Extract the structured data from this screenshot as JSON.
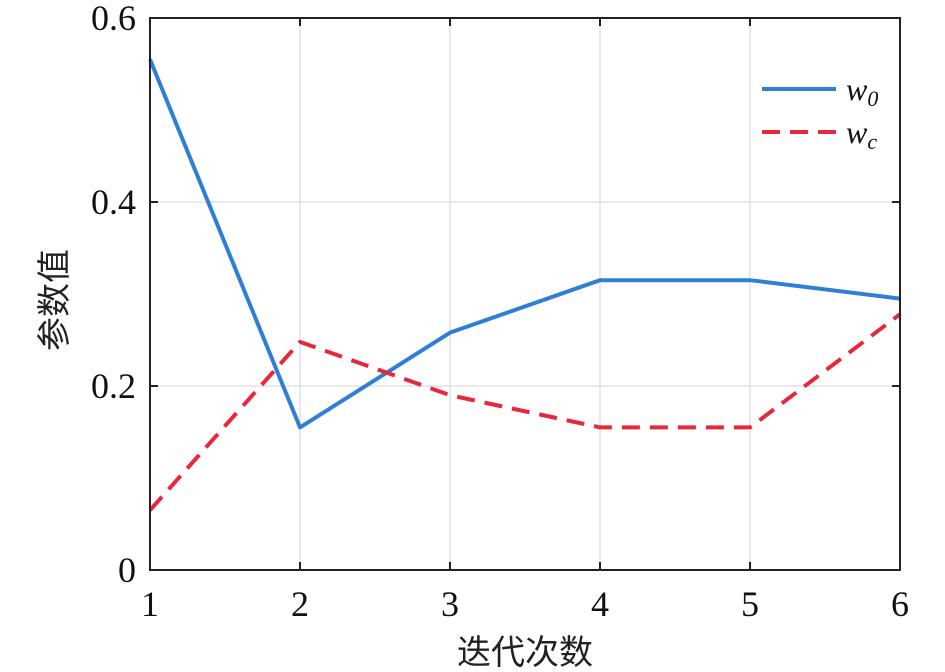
{
  "chart_data": {
    "type": "line",
    "title": "",
    "xlabel": "迭代次数",
    "ylabel": "参数值",
    "x": [
      1,
      2,
      3,
      4,
      5,
      6
    ],
    "xlim": [
      1,
      6
    ],
    "ylim": [
      0,
      0.6
    ],
    "xticks": [
      "1",
      "2",
      "3",
      "4",
      "5",
      "6"
    ],
    "yticks": [
      "0",
      "0.2",
      "0.4",
      "0.6"
    ],
    "grid": true,
    "legend_position": "top-right",
    "series": [
      {
        "name": "w",
        "subscript": "0",
        "values": [
          0.555,
          0.155,
          0.258,
          0.315,
          0.315,
          0.295
        ],
        "color": "#2f7fd6",
        "style": "solid"
      },
      {
        "name": "w",
        "subscript": "c",
        "values": [
          0.065,
          0.248,
          0.19,
          0.155,
          0.155,
          0.278
        ],
        "color": "#e8283a",
        "style": "dashed"
      }
    ]
  }
}
